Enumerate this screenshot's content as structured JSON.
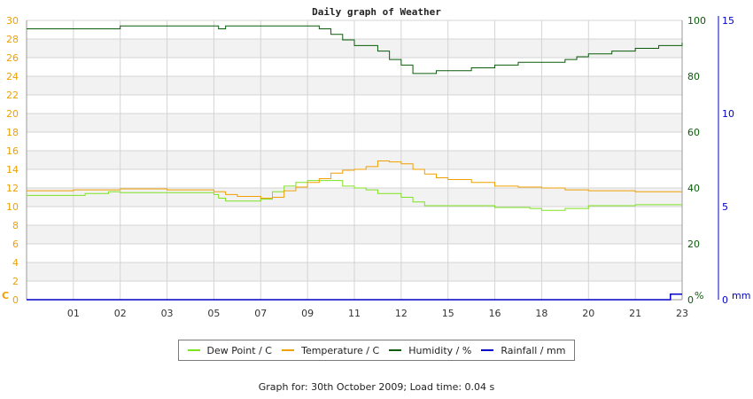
{
  "chart_data": {
    "type": "line",
    "title": "Daily graph of Weather",
    "x_tick_labels": [
      "01",
      "02",
      "03",
      "05",
      "07",
      "09",
      "11",
      "12",
      "15",
      "16",
      "18",
      "20",
      "21",
      "23"
    ],
    "left_axis": {
      "unit_label": "C",
      "ticks": [
        0,
        2,
        4,
        6,
        8,
        10,
        12,
        14,
        16,
        18,
        20,
        22,
        24,
        26,
        28,
        30
      ],
      "range": [
        0,
        30
      ]
    },
    "right_axis_humidity": {
      "unit_label": "%",
      "ticks": [
        0,
        20,
        40,
        60,
        80,
        100
      ],
      "range": [
        0,
        100
      ]
    },
    "right_axis_rainfall": {
      "unit_label": "mm",
      "ticks": [
        0,
        5,
        10,
        15
      ],
      "range": [
        0,
        15
      ]
    },
    "grid": true,
    "legend_position": "bottom",
    "series": [
      {
        "name": "Dew Point / C",
        "axis": "left",
        "color": "#7de21f",
        "x": [
          0,
          2,
          2.5,
          3.5,
          4,
          6,
          8,
          8.2,
          8.5,
          9,
          10,
          10.5,
          11,
          11.5,
          12,
          13.5,
          14,
          14.5,
          15,
          16,
          16.5,
          17,
          19,
          20,
          21.5,
          22,
          23,
          24,
          26,
          28
        ],
        "values": [
          11.2,
          11.2,
          11.4,
          11.6,
          11.5,
          11.5,
          11.3,
          10.9,
          10.6,
          10.6,
          10.8,
          11.6,
          12.2,
          12.6,
          12.8,
          12.2,
          12.0,
          11.8,
          11.4,
          11.0,
          10.5,
          10.1,
          10.1,
          9.9,
          9.8,
          9.6,
          9.8,
          10.1,
          10.2,
          10.2
        ]
      },
      {
        "name": "Temperature / C",
        "axis": "left",
        "color": "#f0a000",
        "x": [
          0,
          2,
          3,
          4,
          5,
          6,
          8,
          8.5,
          9,
          10,
          10.5,
          11,
          11.5,
          12,
          12.5,
          13,
          13.5,
          14,
          14.5,
          15,
          15.5,
          16,
          16.5,
          17,
          17.5,
          18,
          19,
          20,
          21,
          22,
          23,
          24,
          26,
          28
        ],
        "values": [
          11.7,
          11.8,
          11.8,
          11.9,
          11.9,
          11.8,
          11.6,
          11.3,
          11.1,
          10.9,
          11.0,
          11.7,
          12.1,
          12.6,
          13.0,
          13.6,
          13.9,
          14.0,
          14.3,
          14.9,
          14.8,
          14.6,
          14.0,
          13.5,
          13.1,
          12.9,
          12.6,
          12.2,
          12.1,
          12.0,
          11.8,
          11.7,
          11.6,
          11.6
        ]
      },
      {
        "name": "Humidity / %",
        "axis": "right_humidity",
        "color": "#0a5c0a",
        "x": [
          0,
          3,
          4,
          6,
          8,
          8.2,
          8.5,
          9,
          12,
          12.5,
          13,
          13.5,
          14,
          15,
          15.5,
          16,
          16.5,
          17,
          17.5,
          18,
          19,
          20,
          20.5,
          21,
          22,
          23,
          23.5,
          24,
          25,
          26,
          27,
          28
        ],
        "values": [
          97,
          97,
          98,
          98,
          98,
          97,
          98,
          98,
          98,
          97,
          95,
          93,
          91,
          89,
          86,
          84,
          81,
          81,
          82,
          82,
          83,
          84,
          84,
          85,
          85,
          86,
          87,
          88,
          89,
          90,
          91,
          92
        ]
      },
      {
        "name": "Rainfall / mm",
        "axis": "right_rainfall",
        "color": "#0000c8",
        "x": [
          0,
          27,
          27.5,
          28
        ],
        "values": [
          0,
          0,
          0.3,
          0.3
        ]
      }
    ]
  },
  "footer": "Graph for: 30th October 2009; Load time: 0.04 s",
  "colors": {
    "temp_axis": "#f0a000",
    "humidity_axis": "#0a5c0a",
    "rain_axis": "#0000c8",
    "band": "#f2f2f2",
    "grid": "#d4d4d4"
  }
}
